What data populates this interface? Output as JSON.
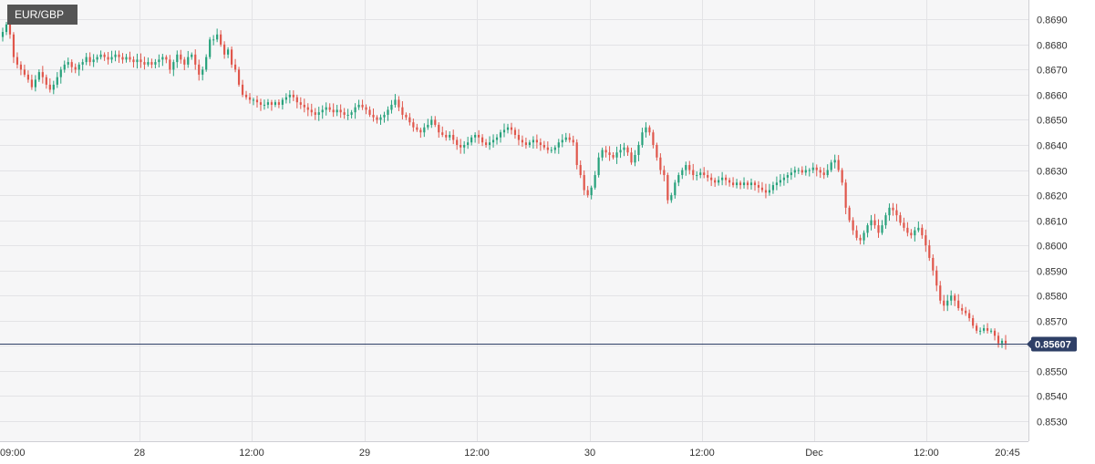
{
  "symbol": "EUR/GBP",
  "last_price": "0.85607",
  "colors": {
    "up": "#26a17b",
    "down": "#e0564b",
    "price_line": "#2e3f66"
  },
  "chart_data": {
    "type": "candlestick",
    "title": "EUR/GBP",
    "price_axis_position": "right",
    "grid": true,
    "ylim": [
      0.8522,
      0.8697
    ],
    "y_ticks": [
      "0.8690",
      "0.8680",
      "0.8670",
      "0.8660",
      "0.8650",
      "0.8640",
      "0.8630",
      "0.8620",
      "0.8610",
      "0.8600",
      "0.8590",
      "0.8580",
      "0.8570",
      "0.8560",
      "0.8550",
      "0.8540",
      "0.8530"
    ],
    "x_ticks": [
      "09:00",
      "28",
      "12:00",
      "29",
      "12:00",
      "30",
      "12:00",
      "Dec",
      "12:00",
      "20:45"
    ],
    "candle_interval_minutes": 15,
    "series": [
      {
        "values": [
          0.8685,
          0.8688,
          0.8684,
          0.8675,
          0.8672,
          0.867,
          0.8668,
          0.8666,
          0.8663,
          0.8666,
          0.8669,
          0.8667,
          0.8664,
          0.8662,
          0.8664,
          0.8667,
          0.867,
          0.8672,
          0.8673,
          0.8671,
          0.867,
          0.8672,
          0.8673,
          0.8675,
          0.8673,
          0.8674,
          0.8675,
          0.8676,
          0.8675,
          0.8674,
          0.8675,
          0.8676,
          0.8675,
          0.8674,
          0.8675,
          0.8674,
          0.8673,
          0.8674,
          0.8673,
          0.8672,
          0.8673,
          0.8672,
          0.8673,
          0.8674,
          0.8675,
          0.8674,
          0.867,
          0.8673,
          0.8676,
          0.8674,
          0.8672,
          0.8675,
          0.8676,
          0.8672,
          0.8668,
          0.867,
          0.8675,
          0.8682,
          0.8682,
          0.8684,
          0.868,
          0.8676,
          0.8678,
          0.8672,
          0.867,
          0.8664,
          0.866,
          0.8659,
          0.8658,
          0.8658,
          0.8657,
          0.8656,
          0.8656,
          0.8657,
          0.8656,
          0.8657,
          0.8656,
          0.8658,
          0.8659,
          0.866,
          0.8659,
          0.8657,
          0.8656,
          0.8655,
          0.8654,
          0.8653,
          0.8652,
          0.8653,
          0.8654,
          0.8655,
          0.8654,
          0.8653,
          0.8654,
          0.8653,
          0.8652,
          0.8652,
          0.8653,
          0.8655,
          0.8656,
          0.8655,
          0.8654,
          0.8652,
          0.8651,
          0.865,
          0.8651,
          0.8652,
          0.8654,
          0.8656,
          0.8658,
          0.8655,
          0.8652,
          0.8651,
          0.8649,
          0.8647,
          0.8646,
          0.8645,
          0.8647,
          0.8648,
          0.865,
          0.8648,
          0.8645,
          0.8644,
          0.8643,
          0.8644,
          0.8642,
          0.864,
          0.8639,
          0.864,
          0.8641,
          0.8643,
          0.8644,
          0.8643,
          0.8641,
          0.864,
          0.8641,
          0.8642,
          0.8643,
          0.8645,
          0.8646,
          0.8647,
          0.8646,
          0.8644,
          0.8642,
          0.8641,
          0.864,
          0.8641,
          0.8642,
          0.8641,
          0.864,
          0.8639,
          0.8638,
          0.8638,
          0.8639,
          0.8641,
          0.8642,
          0.8643,
          0.8642,
          0.8641,
          0.8632,
          0.8628,
          0.8622,
          0.862,
          0.8623,
          0.8628,
          0.8635,
          0.8638,
          0.8637,
          0.8636,
          0.8635,
          0.8637,
          0.8638,
          0.8639,
          0.8637,
          0.8633,
          0.8636,
          0.864,
          0.8645,
          0.8647,
          0.8645,
          0.864,
          0.8635,
          0.863,
          0.8628,
          0.8618,
          0.862,
          0.8625,
          0.8628,
          0.863,
          0.8632,
          0.863,
          0.8628,
          0.8628,
          0.8629,
          0.8628,
          0.8627,
          0.8626,
          0.8625,
          0.8626,
          0.8627,
          0.8626,
          0.8625,
          0.8624,
          0.8625,
          0.8624,
          0.8625,
          0.8624,
          0.8625,
          0.8624,
          0.8623,
          0.8622,
          0.8621,
          0.8622,
          0.8624,
          0.8625,
          0.8626,
          0.8627,
          0.8628,
          0.8629,
          0.863,
          0.863,
          0.8629,
          0.863,
          0.863,
          0.8631,
          0.863,
          0.8629,
          0.8628,
          0.863,
          0.8633,
          0.8634,
          0.863,
          0.8625,
          0.8615,
          0.861,
          0.8606,
          0.8603,
          0.8602,
          0.8605,
          0.8608,
          0.861,
          0.8608,
          0.8605,
          0.8608,
          0.8612,
          0.8615,
          0.8614,
          0.8612,
          0.8609,
          0.8607,
          0.8605,
          0.8604,
          0.8606,
          0.8607,
          0.8604,
          0.86,
          0.8595,
          0.859,
          0.8584,
          0.8578,
          0.8576,
          0.8578,
          0.858,
          0.8578,
          0.8575,
          0.8574,
          0.8573,
          0.8571,
          0.8568,
          0.8566,
          0.8566,
          0.8567,
          0.8566,
          0.8566,
          0.8564,
          0.8561,
          0.8562,
          0.8561
        ]
      }
    ]
  }
}
